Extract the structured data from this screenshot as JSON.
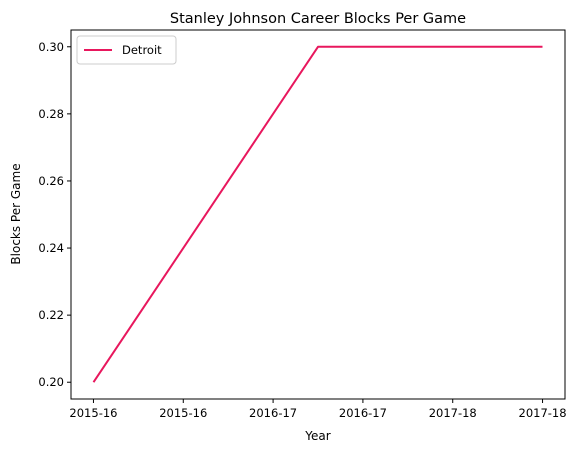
{
  "chart_data": {
    "type": "line",
    "title": "Stanley Johnson  Career Blocks Per Game",
    "xlabel": "Year",
    "ylabel": "Blocks Per Game",
    "x_tick_labels": [
      "2015-16",
      "2015-16",
      "2016-17",
      "2016-17",
      "2017-18",
      "2017-18"
    ],
    "y_tick_labels": [
      "0.20",
      "0.22",
      "0.24",
      "0.26",
      "0.28",
      "0.30"
    ],
    "y_ticks": [
      0.2,
      0.22,
      0.24,
      0.26,
      0.28,
      0.3
    ],
    "xlim": [
      -0.1,
      2.1
    ],
    "ylim": [
      0.195,
      0.305
    ],
    "grid": false,
    "legend_position": "upper-left",
    "series": [
      {
        "name": "Detroit",
        "color": "#e8175d",
        "x": [
          0,
          1,
          2
        ],
        "y": [
          0.2,
          0.3,
          0.3
        ]
      }
    ]
  }
}
